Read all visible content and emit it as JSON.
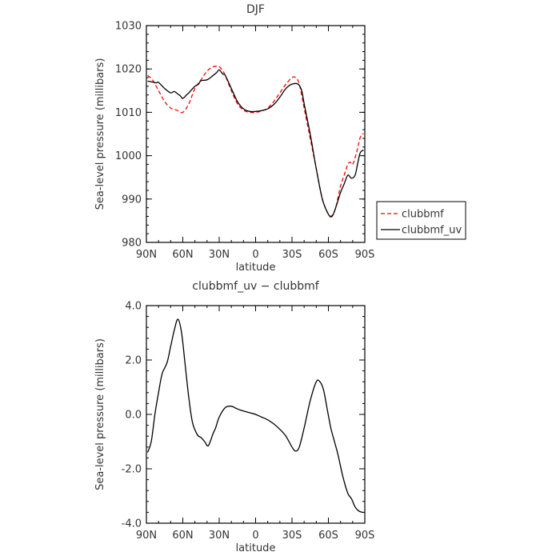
{
  "chart_data": [
    {
      "type": "line",
      "title": "DJF",
      "xlabel": "latitude",
      "ylabel": "Sea-level pressure (millibars)",
      "xlim": [
        90,
        -90
      ],
      "ylim": [
        980,
        1030
      ],
      "x_ticks": [
        90,
        60,
        30,
        0,
        -30,
        -60,
        -90
      ],
      "x_tick_labels": [
        "90N",
        "60N",
        "30N",
        "0",
        "30S",
        "60S",
        "90S"
      ],
      "y_ticks": [
        980,
        990,
        1000,
        1010,
        1020,
        1030
      ],
      "y_tick_labels": [
        "980",
        "990",
        "1000",
        "1010",
        "1020",
        "1030"
      ],
      "legend_position": "right",
      "grid": false,
      "series": [
        {
          "name": "clubbmf",
          "color": "#ff0000",
          "style": "dashed",
          "x": [
            89,
            85,
            80,
            75,
            70,
            65,
            60,
            55,
            50,
            45,
            40,
            35,
            30,
            27,
            25,
            20,
            15,
            10,
            5,
            0,
            -5,
            -10,
            -15,
            -20,
            -25,
            -30,
            -33,
            -36,
            -40,
            -45,
            -50,
            -55,
            -60,
            -63,
            -66,
            -70,
            -73,
            -76,
            -78,
            -80,
            -83,
            -86,
            -88,
            -89
          ],
          "y": [
            1018.5,
            1017.5,
            1015,
            1012.5,
            1011,
            1010.5,
            1010,
            1012,
            1015.5,
            1017.5,
            1019.5,
            1020.5,
            1020.5,
            1019.5,
            1018.5,
            1015,
            1012,
            1010.5,
            1010,
            1010,
            1010.3,
            1011,
            1012.5,
            1014.5,
            1016.5,
            1018,
            1018,
            1016.5,
            1011,
            1004,
            997,
            990,
            986.5,
            986.2,
            988,
            993,
            995.5,
            998,
            998.5,
            998,
            1000.5,
            1004,
            1005,
            1005
          ]
        },
        {
          "name": "clubbmf_uv",
          "color": "#000000",
          "style": "solid",
          "x": [
            89,
            85,
            82,
            80,
            75,
            70,
            67,
            64,
            62,
            60,
            57,
            55,
            50,
            47,
            45,
            40,
            35,
            32,
            30,
            27,
            25,
            20,
            15,
            10,
            5,
            0,
            -5,
            -10,
            -15,
            -20,
            -25,
            -30,
            -35,
            -38,
            -40,
            -45,
            -50,
            -55,
            -60,
            -63,
            -66,
            -70,
            -73,
            -76,
            -79,
            -82,
            -84,
            -86,
            -88,
            -89
          ],
          "y": [
            1017.2,
            1017,
            1016.8,
            1016.9,
            1015.5,
            1014.5,
            1014.8,
            1014.2,
            1013.8,
            1013.2,
            1014,
            1014.5,
            1016,
            1016.5,
            1017.3,
            1017.5,
            1018.5,
            1019.2,
            1019.8,
            1018.8,
            1018.5,
            1015.5,
            1012.5,
            1010.8,
            1010.2,
            1010.2,
            1010.4,
            1010.8,
            1011.8,
            1013.5,
            1015.5,
            1016.5,
            1016.5,
            1015,
            1012,
            1005,
            997,
            990,
            986.5,
            986,
            988,
            991.5,
            993.5,
            995.5,
            994.8,
            995.5,
            998,
            1000.5,
            1001.2,
            1001.2
          ]
        }
      ]
    },
    {
      "type": "line",
      "title": "clubbmf_uv − clubbmf",
      "xlabel": "latitude",
      "ylabel": "Sea-level pressure (millibars)",
      "xlim": [
        90,
        -90
      ],
      "ylim": [
        -4,
        4
      ],
      "x_ticks": [
        90,
        60,
        30,
        0,
        -30,
        -60,
        -90
      ],
      "x_tick_labels": [
        "90N",
        "60N",
        "30N",
        "0",
        "30S",
        "60S",
        "90S"
      ],
      "y_ticks": [
        -4,
        -2,
        0,
        2,
        4
      ],
      "y_tick_labels": [
        "-4.0",
        "-2.0",
        "0.0",
        "2.0",
        "4.0"
      ],
      "grid": false,
      "series": [
        {
          "color": "#000000",
          "style": "solid",
          "x": [
            89,
            86,
            83,
            80,
            77,
            73,
            70,
            67,
            64,
            61,
            58,
            55,
            52,
            48,
            45,
            42,
            39,
            35,
            33,
            30,
            25,
            20,
            16,
            12,
            8,
            4,
            0,
            -5,
            -10,
            -15,
            -20,
            -25,
            -30,
            -33,
            -36,
            -40,
            -45,
            -50,
            -53,
            -56,
            -59,
            -62,
            -65,
            -68,
            -72,
            -76,
            -79,
            -82,
            -85,
            -88,
            -89
          ],
          "y": [
            -1.4,
            -1.0,
            0.0,
            0.8,
            1.5,
            1.9,
            2.5,
            3.1,
            3.5,
            3.0,
            1.8,
            0.6,
            -0.3,
            -0.75,
            -0.85,
            -1.0,
            -1.15,
            -0.7,
            -0.5,
            -0.1,
            0.25,
            0.3,
            0.22,
            0.15,
            0.1,
            0.05,
            0.0,
            -0.1,
            -0.2,
            -0.35,
            -0.55,
            -0.8,
            -1.2,
            -1.35,
            -1.2,
            -0.5,
            0.5,
            1.2,
            1.2,
            0.9,
            0.2,
            -0.5,
            -1.0,
            -1.5,
            -2.3,
            -2.9,
            -3.1,
            -3.4,
            -3.55,
            -3.6,
            -3.6
          ]
        }
      ]
    }
  ]
}
